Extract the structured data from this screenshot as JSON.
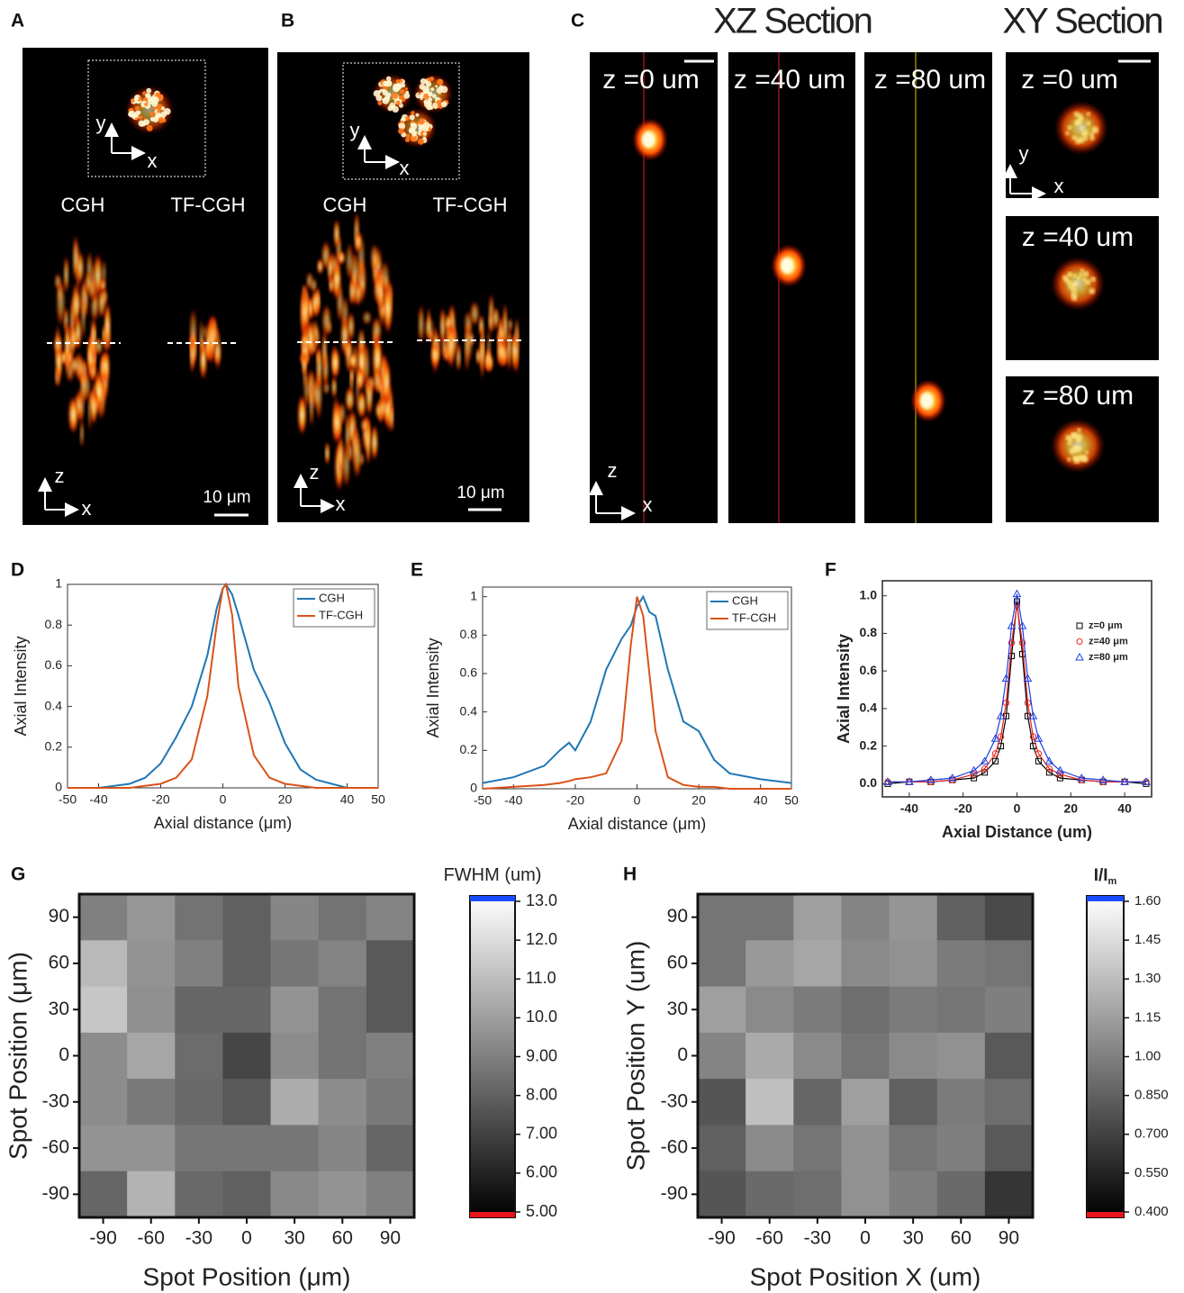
{
  "panels": [
    {
      "label": "A",
      "columns": [
        "CGH",
        "TF-CGH"
      ],
      "inset_axis": {
        "v": "y",
        "h": "x"
      },
      "axis": {
        "v": "z",
        "h": "x"
      },
      "scale_bar": "10 μm"
    },
    {
      "label": "B",
      "columns": [
        "CGH",
        "TF-CGH"
      ],
      "inset_axis": {
        "v": "y",
        "h": "x"
      },
      "axis": {
        "v": "z",
        "h": "x"
      },
      "scale_bar": "10 μm"
    },
    {
      "label": "C",
      "titles": [
        "XZ Section",
        "XY Section"
      ],
      "xz_labels": [
        "z =0 um",
        "z =40 um",
        "z =80 um"
      ],
      "xy_labels": [
        "z =0 um",
        "z =40 um",
        "z =80 um"
      ],
      "xz_axis": {
        "v": "z",
        "h": "x"
      },
      "xy_axis": {
        "v": "y",
        "h": "x"
      }
    }
  ],
  "chart_data": [
    {
      "type": "line",
      "panel_label": "D",
      "xlabel": "Axial distance (μm)",
      "ylabel": "Axial Intensity",
      "legend": "upper right",
      "x": [
        -50,
        -40,
        -30,
        -25,
        -20,
        -15,
        -10,
        -5,
        -2,
        0,
        1,
        3,
        5,
        10,
        15,
        20,
        25,
        30,
        40,
        50
      ],
      "series": [
        {
          "name": "CGH",
          "color": "#1f77b4",
          "values": [
            0,
            0,
            0.02,
            0.05,
            0.12,
            0.25,
            0.4,
            0.65,
            0.88,
            0.98,
            1.0,
            0.95,
            0.85,
            0.58,
            0.42,
            0.22,
            0.09,
            0.04,
            0,
            0
          ]
        },
        {
          "name": "TF-CGH",
          "color": "#d95319",
          "values": [
            0,
            0,
            0,
            0.01,
            0.02,
            0.05,
            0.14,
            0.45,
            0.8,
            0.98,
            1.0,
            0.85,
            0.5,
            0.16,
            0.05,
            0.02,
            0.01,
            0,
            0,
            0
          ]
        }
      ],
      "xlim": [
        -50,
        50
      ],
      "ylim": [
        0,
        1
      ],
      "xticks": [
        -50,
        -40,
        -20,
        0,
        20,
        40,
        50
      ],
      "yticks": [
        0,
        0.2,
        0.4,
        0.6,
        0.8,
        1
      ]
    },
    {
      "type": "line",
      "panel_label": "E",
      "xlabel": "Axial distance (μm)",
      "ylabel": "Axial Intensity",
      "legend": "upper right",
      "x": [
        -50,
        -40,
        -30,
        -25,
        -22,
        -20,
        -15,
        -10,
        -5,
        -2,
        0,
        2,
        4,
        6,
        10,
        15,
        20,
        25,
        30,
        40,
        50
      ],
      "series": [
        {
          "name": "CGH",
          "color": "#1f77b4",
          "values": [
            0.03,
            0.06,
            0.12,
            0.2,
            0.24,
            0.2,
            0.35,
            0.62,
            0.78,
            0.85,
            0.95,
            1.0,
            0.92,
            0.9,
            0.62,
            0.35,
            0.3,
            0.15,
            0.08,
            0.05,
            0.03
          ]
        },
        {
          "name": "TF-CGH",
          "color": "#d95319",
          "values": [
            0,
            0.01,
            0.02,
            0.03,
            0.04,
            0.05,
            0.06,
            0.08,
            0.25,
            0.75,
            1.0,
            0.9,
            0.6,
            0.3,
            0.06,
            0.02,
            0.01,
            0.01,
            0,
            0,
            0
          ]
        }
      ],
      "xlim": [
        -50,
        50
      ],
      "ylim": [
        0,
        1.05
      ],
      "xticks": [
        -50,
        -40,
        -20,
        0,
        20,
        40,
        50
      ],
      "yticks": [
        0,
        0.2,
        0.4,
        0.6,
        0.8,
        1
      ]
    },
    {
      "type": "scatter",
      "panel_label": "F",
      "xlabel": "Axial Distance (um)",
      "ylabel": "Axial Intensity",
      "legend": "upper right",
      "x": [
        -48,
        -40,
        -32,
        -24,
        -16,
        -12,
        -8,
        -6,
        -4,
        -2,
        0,
        2,
        4,
        6,
        8,
        12,
        16,
        24,
        32,
        40,
        48
      ],
      "series": [
        {
          "name": "z=0 μm",
          "color": "#000000",
          "marker": "square",
          "values": [
            0.0,
            0.01,
            0.01,
            0.02,
            0.03,
            0.06,
            0.12,
            0.2,
            0.36,
            0.68,
            0.97,
            0.69,
            0.36,
            0.2,
            0.12,
            0.06,
            0.03,
            0.02,
            0.01,
            0.01,
            0.0
          ]
        },
        {
          "name": "z=40 μm",
          "color": "#e8231e",
          "marker": "circle",
          "values": [
            0.01,
            0.01,
            0.01,
            0.02,
            0.05,
            0.08,
            0.16,
            0.25,
            0.43,
            0.75,
            0.95,
            0.75,
            0.43,
            0.25,
            0.16,
            0.08,
            0.05,
            0.02,
            0.01,
            0.01,
            0.01
          ]
        },
        {
          "name": "z=80 μm",
          "color": "#1f3fe0",
          "marker": "triangle",
          "values": [
            0.01,
            0.01,
            0.02,
            0.03,
            0.07,
            0.12,
            0.24,
            0.36,
            0.56,
            0.84,
            1.01,
            0.84,
            0.56,
            0.36,
            0.24,
            0.12,
            0.07,
            0.03,
            0.02,
            0.01,
            0.01
          ]
        }
      ],
      "xlim": [
        -50,
        50
      ],
      "ylim": [
        -0.07,
        1.08
      ],
      "xticks": [
        -40,
        -20,
        0,
        20,
        40
      ],
      "yticks": [
        {
          "value": 0,
          "label": "0.0"
        },
        {
          "value": 0.2,
          "label": "0.2"
        },
        {
          "value": 0.4,
          "label": "0.4"
        },
        {
          "value": 0.6,
          "label": "0.6"
        },
        {
          "value": 0.8,
          "label": "0.8"
        },
        {
          "value": 1,
          "label": "1.0"
        }
      ]
    },
    {
      "type": "heatmap",
      "panel_label": "G",
      "xlabel": "Spot Position (μm)",
      "ylabel": "Spot Position (μm)",
      "colorbar_title": "FWHM (um)",
      "x": [
        -90,
        -60,
        -30,
        0,
        30,
        60,
        90
      ],
      "y": [
        90,
        60,
        30,
        0,
        -30,
        -60,
        -90
      ],
      "values": [
        [
          9.0,
          9.7,
          8.6,
          8.0,
          9.2,
          8.6,
          9.1
        ],
        [
          10.8,
          9.6,
          9.0,
          8.0,
          8.7,
          9.1,
          7.8
        ],
        [
          11.2,
          9.5,
          8.2,
          8.2,
          9.6,
          8.6,
          7.8
        ],
        [
          9.4,
          10.2,
          8.4,
          7.2,
          9.4,
          8.6,
          9.0
        ],
        [
          9.4,
          8.8,
          8.3,
          7.8,
          10.4,
          9.4,
          8.8
        ],
        [
          9.6,
          9.6,
          8.7,
          8.7,
          8.7,
          9.2,
          8.2
        ],
        [
          8.2,
          10.6,
          8.3,
          8.0,
          9.3,
          9.6,
          9.0
        ]
      ],
      "clim": [
        5,
        13
      ],
      "cticks": [
        {
          "value": 5,
          "label": "5.00"
        },
        {
          "value": 6,
          "label": "6.00"
        },
        {
          "value": 7,
          "label": "7.00"
        },
        {
          "value": 8,
          "label": "8.00"
        },
        {
          "value": 9,
          "label": "9.00"
        },
        {
          "value": 10,
          "label": "10.0"
        },
        {
          "value": 11,
          "label": "11.0"
        },
        {
          "value": 12,
          "label": "12.0"
        },
        {
          "value": 13,
          "label": "13.0"
        }
      ]
    },
    {
      "type": "heatmap",
      "panel_label": "H",
      "xlabel": "Spot Position X (um)",
      "ylabel": "Spot Position Y (um)",
      "colorbar_title": "I/I",
      "colorbar_title_sub": "m",
      "x": [
        -90,
        -60,
        -30,
        0,
        30,
        60,
        90
      ],
      "y": [
        90,
        60,
        30,
        0,
        -30,
        -60,
        -90
      ],
      "values": [
        [
          0.95,
          0.95,
          1.15,
          1.02,
          1.1,
          0.85,
          0.75
        ],
        [
          0.95,
          1.12,
          1.18,
          1.05,
          1.08,
          0.98,
          0.95
        ],
        [
          1.15,
          1.05,
          0.98,
          0.92,
          0.98,
          0.95,
          1.0
        ],
        [
          1.02,
          1.2,
          1.05,
          0.95,
          1.05,
          1.08,
          0.82
        ],
        [
          0.8,
          1.3,
          0.88,
          1.15,
          0.85,
          0.98,
          0.92
        ],
        [
          0.85,
          1.05,
          0.95,
          1.08,
          0.95,
          1.0,
          0.82
        ],
        [
          0.8,
          0.9,
          0.92,
          1.08,
          1.0,
          0.9,
          0.65
        ]
      ],
      "clim": [
        0.4,
        1.6
      ],
      "cticks": [
        {
          "value": 0.4,
          "label": "0.400"
        },
        {
          "value": 0.55,
          "label": "0.550"
        },
        {
          "value": 0.7,
          "label": "0.700"
        },
        {
          "value": 0.85,
          "label": "0.850"
        },
        {
          "value": 1,
          "label": "1.00"
        },
        {
          "value": 1.15,
          "label": "1.15"
        },
        {
          "value": 1.3,
          "label": "1.30"
        },
        {
          "value": 1.45,
          "label": "1.45"
        },
        {
          "value": 1.6,
          "label": "1.60"
        }
      ]
    }
  ]
}
